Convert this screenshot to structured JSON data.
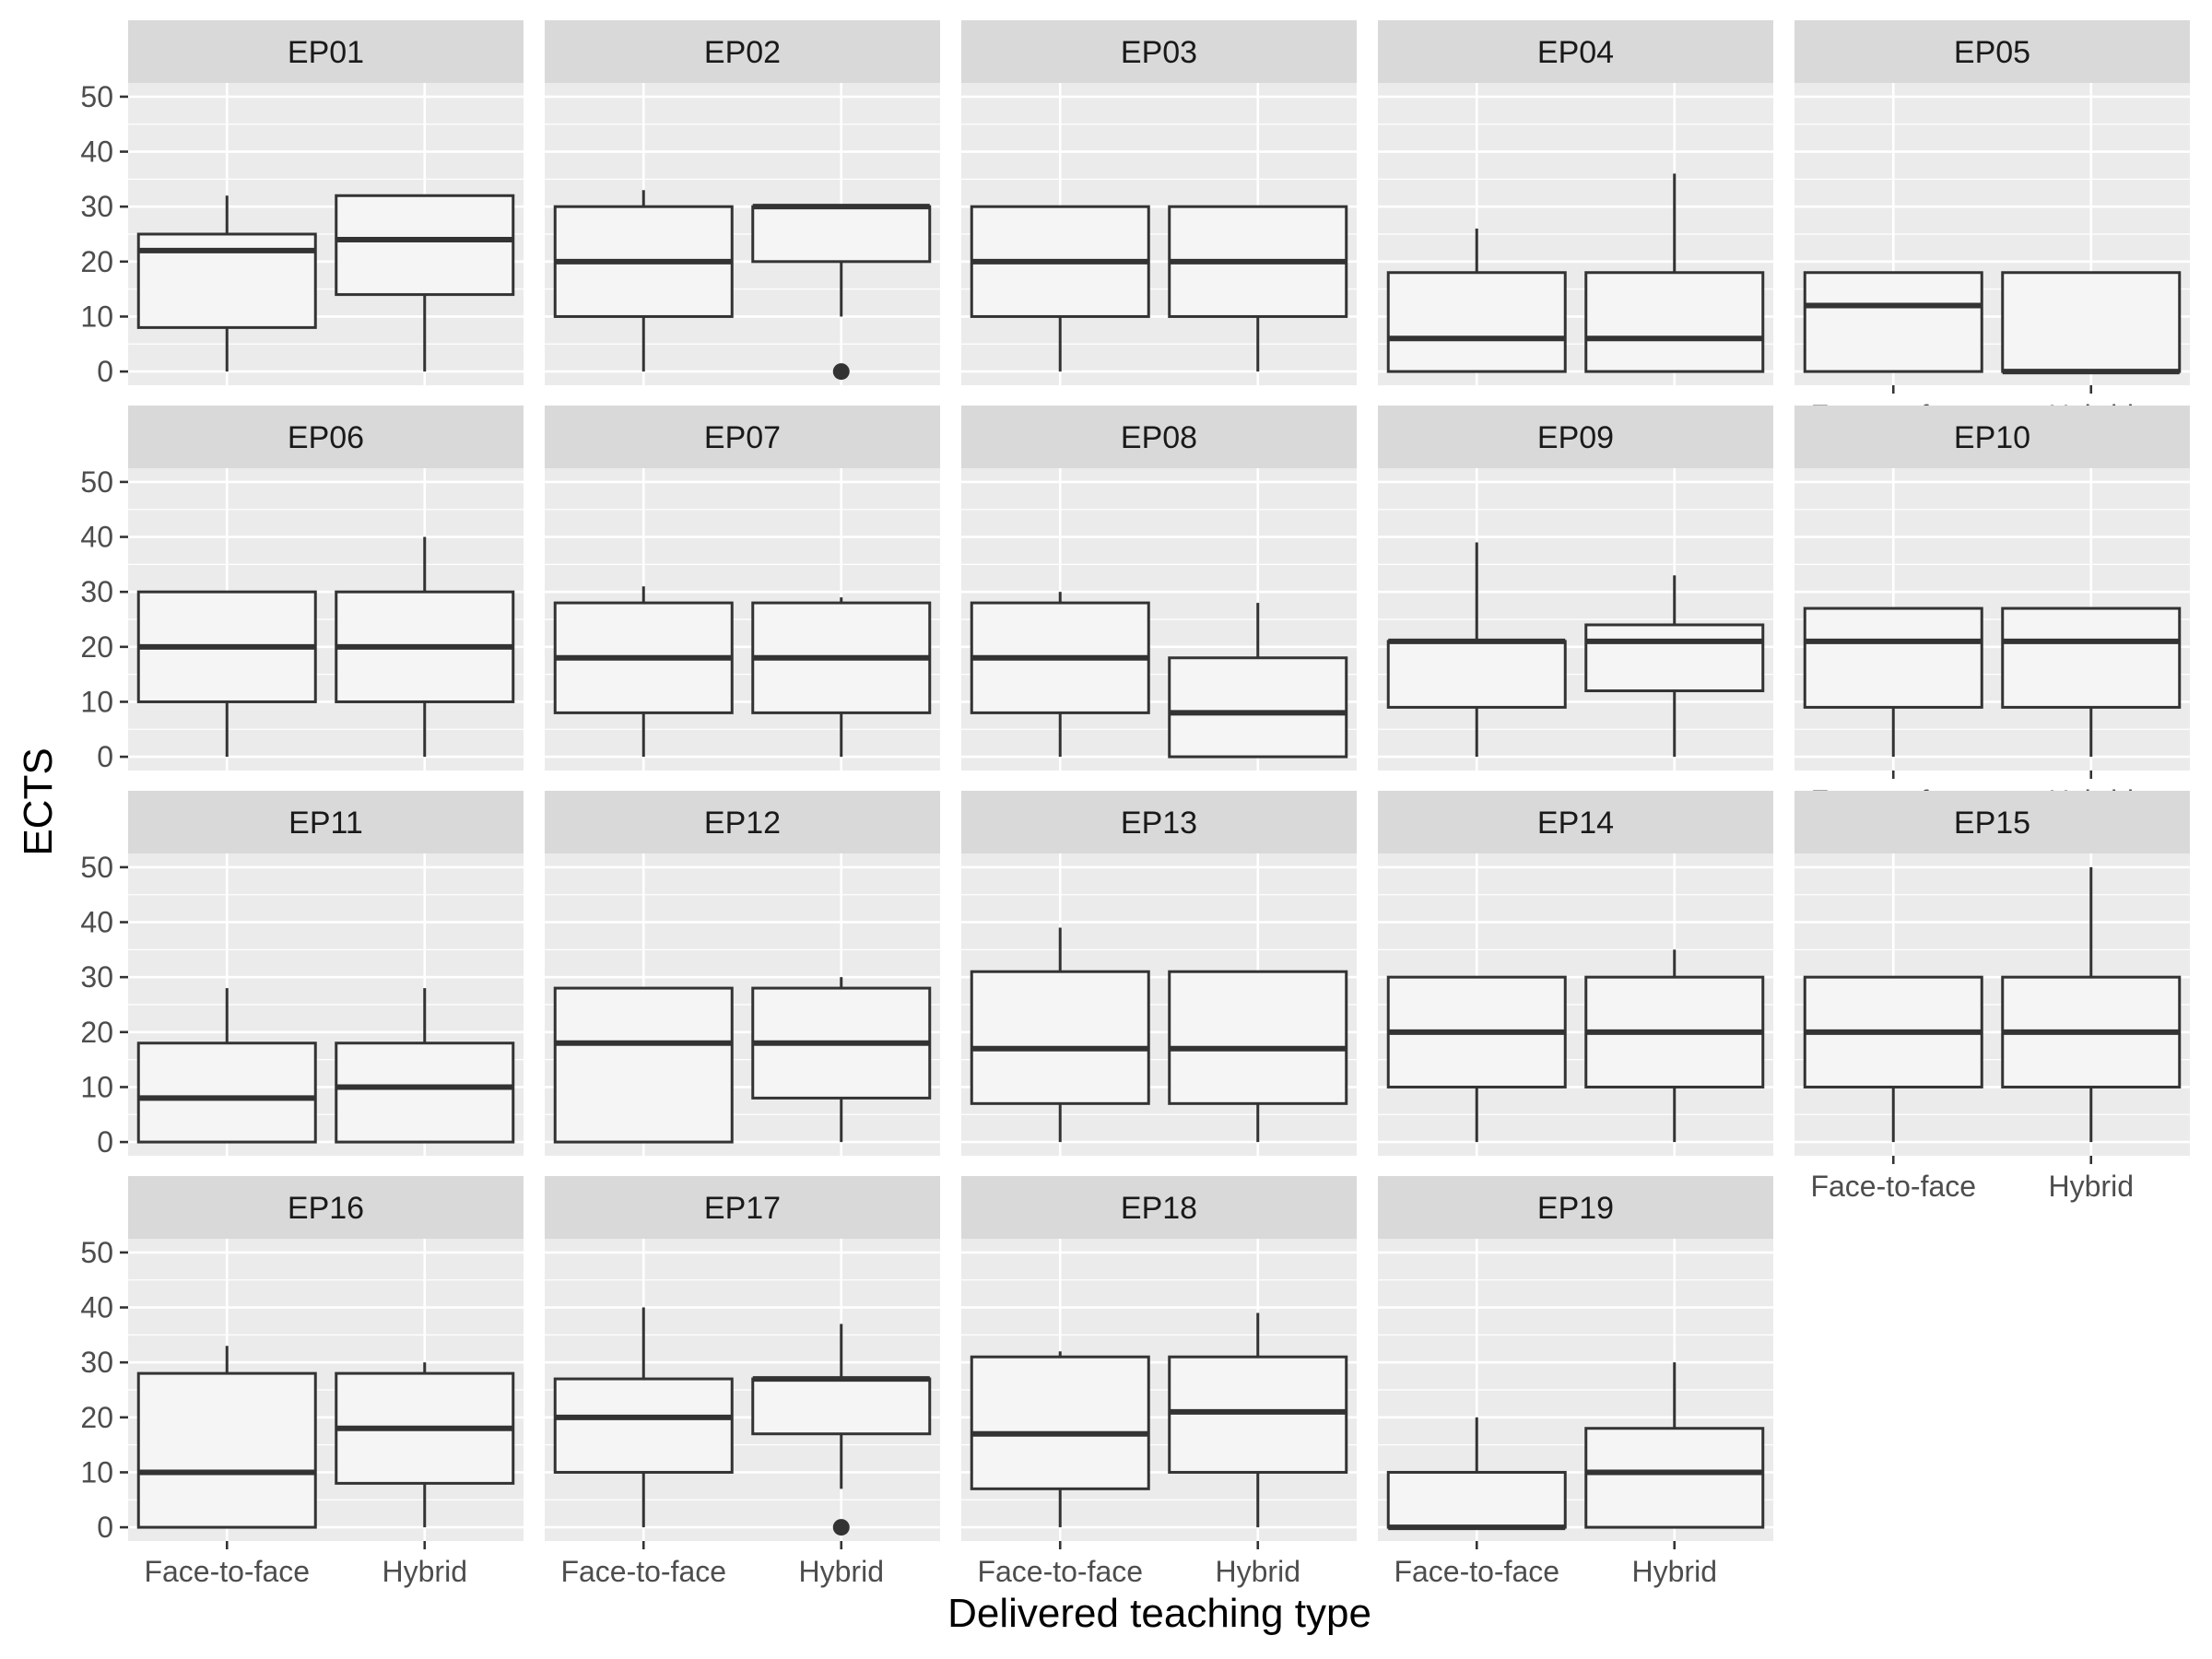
{
  "chart_data": {
    "type": "boxplot",
    "xlabel": "Delivered teaching type",
    "ylabel": "ECTS",
    "ylim": [
      -2.5,
      52.5
    ],
    "y_ticks": [
      0,
      10,
      20,
      30,
      40,
      50
    ],
    "categories": [
      "Face-to-face",
      "Hybrid"
    ],
    "layout": "facet_wrap 4 rows x 5 cols",
    "colors": {
      "panel_bg": "#ebebeb",
      "grid_major": "#ffffff",
      "strip_bg": "#d9d9d9",
      "box_fill": "#f5f5f5",
      "box_line": "#333333"
    },
    "panels": [
      {
        "name": "EP01",
        "boxes": [
          {
            "group": "Face-to-face",
            "min": 0,
            "q1": 8,
            "median": 22,
            "q3": 25,
            "max": 32,
            "outliers": []
          },
          {
            "group": "Hybrid",
            "min": 0,
            "q1": 14,
            "median": 24,
            "q3": 32,
            "max": 32,
            "outliers": []
          }
        ]
      },
      {
        "name": "EP02",
        "boxes": [
          {
            "group": "Face-to-face",
            "min": 0,
            "q1": 10,
            "median": 20,
            "q3": 30,
            "max": 33,
            "outliers": []
          },
          {
            "group": "Hybrid",
            "min": 10,
            "q1": 20,
            "median": 30,
            "q3": 30,
            "max": 30,
            "outliers": [
              0
            ]
          }
        ]
      },
      {
        "name": "EP03",
        "boxes": [
          {
            "group": "Face-to-face",
            "min": 0,
            "q1": 10,
            "median": 20,
            "q3": 30,
            "max": 30,
            "outliers": []
          },
          {
            "group": "Hybrid",
            "min": 0,
            "q1": 10,
            "median": 20,
            "q3": 30,
            "max": 30,
            "outliers": []
          }
        ]
      },
      {
        "name": "EP04",
        "boxes": [
          {
            "group": "Face-to-face",
            "min": 0,
            "q1": 0,
            "median": 6,
            "q3": 18,
            "max": 26,
            "outliers": []
          },
          {
            "group": "Hybrid",
            "min": 0,
            "q1": 0,
            "median": 6,
            "q3": 18,
            "max": 36,
            "outliers": []
          }
        ]
      },
      {
        "name": "EP05",
        "boxes": [
          {
            "group": "Face-to-face",
            "min": 0,
            "q1": 0,
            "median": 12,
            "q3": 18,
            "max": 18,
            "outliers": []
          },
          {
            "group": "Hybrid",
            "min": 0,
            "q1": 0,
            "median": 0,
            "q3": 18,
            "max": 18,
            "outliers": []
          }
        ]
      },
      {
        "name": "EP06",
        "boxes": [
          {
            "group": "Face-to-face",
            "min": 0,
            "q1": 10,
            "median": 20,
            "q3": 30,
            "max": 30,
            "outliers": []
          },
          {
            "group": "Hybrid",
            "min": 0,
            "q1": 10,
            "median": 20,
            "q3": 30,
            "max": 40,
            "outliers": []
          }
        ]
      },
      {
        "name": "EP07",
        "boxes": [
          {
            "group": "Face-to-face",
            "min": 0,
            "q1": 8,
            "median": 18,
            "q3": 28,
            "max": 31,
            "outliers": []
          },
          {
            "group": "Hybrid",
            "min": 0,
            "q1": 8,
            "median": 18,
            "q3": 28,
            "max": 29,
            "outliers": []
          }
        ]
      },
      {
        "name": "EP08",
        "boxes": [
          {
            "group": "Face-to-face",
            "min": 0,
            "q1": 8,
            "median": 18,
            "q3": 28,
            "max": 30,
            "outliers": []
          },
          {
            "group": "Hybrid",
            "min": 0,
            "q1": 0,
            "median": 8,
            "q3": 18,
            "max": 28,
            "outliers": []
          }
        ]
      },
      {
        "name": "EP09",
        "boxes": [
          {
            "group": "Face-to-face",
            "min": 0,
            "q1": 9,
            "median": 21,
            "q3": 21,
            "max": 39,
            "outliers": []
          },
          {
            "group": "Hybrid",
            "min": 0,
            "q1": 12,
            "median": 21,
            "q3": 24,
            "max": 33,
            "outliers": []
          }
        ]
      },
      {
        "name": "EP10",
        "boxes": [
          {
            "group": "Face-to-face",
            "min": 0,
            "q1": 9,
            "median": 21,
            "q3": 27,
            "max": 27,
            "outliers": []
          },
          {
            "group": "Hybrid",
            "min": 0,
            "q1": 9,
            "median": 21,
            "q3": 27,
            "max": 27,
            "outliers": []
          }
        ]
      },
      {
        "name": "EP11",
        "boxes": [
          {
            "group": "Face-to-face",
            "min": 0,
            "q1": 0,
            "median": 8,
            "q3": 18,
            "max": 28,
            "outliers": []
          },
          {
            "group": "Hybrid",
            "min": 0,
            "q1": 0,
            "median": 10,
            "q3": 18,
            "max": 28,
            "outliers": []
          }
        ]
      },
      {
        "name": "EP12",
        "boxes": [
          {
            "group": "Face-to-face",
            "min": 0,
            "q1": 0,
            "median": 18,
            "q3": 28,
            "max": 28,
            "outliers": []
          },
          {
            "group": "Hybrid",
            "min": 0,
            "q1": 8,
            "median": 18,
            "q3": 28,
            "max": 30,
            "outliers": []
          }
        ]
      },
      {
        "name": "EP13",
        "boxes": [
          {
            "group": "Face-to-face",
            "min": 0,
            "q1": 7,
            "median": 17,
            "q3": 31,
            "max": 39,
            "outliers": []
          },
          {
            "group": "Hybrid",
            "min": 0,
            "q1": 7,
            "median": 17,
            "q3": 31,
            "max": 31,
            "outliers": []
          }
        ]
      },
      {
        "name": "EP14",
        "boxes": [
          {
            "group": "Face-to-face",
            "min": 0,
            "q1": 10,
            "median": 20,
            "q3": 30,
            "max": 30,
            "outliers": []
          },
          {
            "group": "Hybrid",
            "min": 0,
            "q1": 10,
            "median": 20,
            "q3": 30,
            "max": 35,
            "outliers": []
          }
        ]
      },
      {
        "name": "EP15",
        "boxes": [
          {
            "group": "Face-to-face",
            "min": 0,
            "q1": 10,
            "median": 20,
            "q3": 30,
            "max": 30,
            "outliers": []
          },
          {
            "group": "Hybrid",
            "min": 0,
            "q1": 10,
            "median": 20,
            "q3": 30,
            "max": 50,
            "outliers": []
          }
        ]
      },
      {
        "name": "EP16",
        "boxes": [
          {
            "group": "Face-to-face",
            "min": 0,
            "q1": 0,
            "median": 10,
            "q3": 28,
            "max": 33,
            "outliers": []
          },
          {
            "group": "Hybrid",
            "min": 0,
            "q1": 8,
            "median": 18,
            "q3": 28,
            "max": 30,
            "outliers": []
          }
        ]
      },
      {
        "name": "EP17",
        "boxes": [
          {
            "group": "Face-to-face",
            "min": 0,
            "q1": 10,
            "median": 20,
            "q3": 27,
            "max": 40,
            "outliers": []
          },
          {
            "group": "Hybrid",
            "min": 7,
            "q1": 17,
            "median": 27,
            "q3": 27,
            "max": 37,
            "outliers": [
              0
            ]
          }
        ]
      },
      {
        "name": "EP18",
        "boxes": [
          {
            "group": "Face-to-face",
            "min": 0,
            "q1": 7,
            "median": 17,
            "q3": 31,
            "max": 32,
            "outliers": []
          },
          {
            "group": "Hybrid",
            "min": 0,
            "q1": 10,
            "median": 21,
            "q3": 31,
            "max": 39,
            "outliers": []
          }
        ]
      },
      {
        "name": "EP19",
        "boxes": [
          {
            "group": "Face-to-face",
            "min": 0,
            "q1": 0,
            "median": 0,
            "q3": 10,
            "max": 20,
            "outliers": []
          },
          {
            "group": "Hybrid",
            "min": 0,
            "q1": 0,
            "median": 10,
            "q3": 18,
            "max": 30,
            "outliers": []
          }
        ]
      }
    ]
  }
}
